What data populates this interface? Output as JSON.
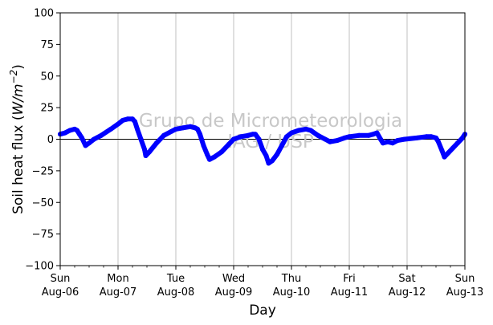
{
  "chart_data": {
    "type": "line",
    "xlabel": "Day",
    "ylabel": "Soil heat flux (W/m⁻²)",
    "ylabel_parts": {
      "pre": "Soil heat flux (",
      "var": "W/m",
      "sup": "−2",
      "post": ")"
    },
    "ylim": [
      -100,
      100
    ],
    "xlim": [
      "2023-08-06T00:00",
      "2023-08-13T00:00"
    ],
    "yticks": [
      100,
      75,
      50,
      25,
      0,
      -25,
      -50,
      -75,
      -100
    ],
    "ytick_labels": [
      "100",
      "75",
      "50",
      "25",
      "0",
      "−25",
      "−50",
      "−75",
      "−100"
    ],
    "xticks": [
      {
        "date": "2023-08-06",
        "line1": "Sun",
        "line2": "Aug-06"
      },
      {
        "date": "2023-08-07",
        "line1": "Mon",
        "line2": "Aug-07"
      },
      {
        "date": "2023-08-08",
        "line1": "Tue",
        "line2": "Aug-08"
      },
      {
        "date": "2023-08-09",
        "line1": "Wed",
        "line2": "Aug-09"
      },
      {
        "date": "2023-08-10",
        "line1": "Thu",
        "line2": "Aug-10"
      },
      {
        "date": "2023-08-11",
        "line1": "Fri",
        "line2": "Aug-11"
      },
      {
        "date": "2023-08-12",
        "line1": "Sat",
        "line2": "Aug-12"
      },
      {
        "date": "2023-08-13",
        "line1": "Sun",
        "line2": "Aug-13"
      }
    ],
    "grid": "vertical",
    "zero_line": true,
    "watermark": [
      "Grupo de Micrometeorologia",
      "IAG / USP"
    ],
    "series": [
      {
        "color": "#0000ff",
        "points": [
          [
            "2023-08-06T00:00",
            4
          ],
          [
            "2023-08-06T02:00",
            5
          ],
          [
            "2023-08-06T04:00",
            7
          ],
          [
            "2023-08-06T06:00",
            8
          ],
          [
            "2023-08-06T07:00",
            7
          ],
          [
            "2023-08-06T08:00",
            4
          ],
          [
            "2023-08-06T09:00",
            1
          ],
          [
            "2023-08-06T10:30",
            -5
          ],
          [
            "2023-08-06T12:00",
            -3
          ],
          [
            "2023-08-06T14:00",
            0
          ],
          [
            "2023-08-06T17:00",
            3
          ],
          [
            "2023-08-06T21:00",
            8
          ],
          [
            "2023-08-07T00:00",
            12
          ],
          [
            "2023-08-07T02:00",
            15
          ],
          [
            "2023-08-07T04:00",
            16
          ],
          [
            "2023-08-07T06:00",
            16
          ],
          [
            "2023-08-07T07:00",
            14
          ],
          [
            "2023-08-07T08:00",
            8
          ],
          [
            "2023-08-07T09:30",
            0
          ],
          [
            "2023-08-07T11:00",
            -8
          ],
          [
            "2023-08-07T11:30",
            -13
          ],
          [
            "2023-08-07T13:00",
            -10
          ],
          [
            "2023-08-07T16:00",
            -3
          ],
          [
            "2023-08-07T19:00",
            3
          ],
          [
            "2023-08-07T22:00",
            6
          ],
          [
            "2023-08-08T00:00",
            8
          ],
          [
            "2023-08-08T03:00",
            9
          ],
          [
            "2023-08-08T06:00",
            10
          ],
          [
            "2023-08-08T08:00",
            9
          ],
          [
            "2023-08-08T09:00",
            8
          ],
          [
            "2023-08-08T10:00",
            4
          ],
          [
            "2023-08-08T11:30",
            -5
          ],
          [
            "2023-08-08T13:00",
            -12
          ],
          [
            "2023-08-08T14:00",
            -16
          ],
          [
            "2023-08-08T16:00",
            -14
          ],
          [
            "2023-08-08T19:00",
            -10
          ],
          [
            "2023-08-08T22:00",
            -4
          ],
          [
            "2023-08-09T00:00",
            0
          ],
          [
            "2023-08-09T03:00",
            2
          ],
          [
            "2023-08-09T06:00",
            3
          ],
          [
            "2023-08-09T08:00",
            4
          ],
          [
            "2023-08-09T09:00",
            4
          ],
          [
            "2023-08-09T10:30",
            0
          ],
          [
            "2023-08-09T12:00",
            -8
          ],
          [
            "2023-08-09T13:30",
            -13
          ],
          [
            "2023-08-09T14:30",
            -19
          ],
          [
            "2023-08-09T16:00",
            -17
          ],
          [
            "2023-08-09T18:00",
            -12
          ],
          [
            "2023-08-09T20:00",
            -5
          ],
          [
            "2023-08-09T22:00",
            2
          ],
          [
            "2023-08-10T00:00",
            5
          ],
          [
            "2023-08-10T03:00",
            7
          ],
          [
            "2023-08-10T06:00",
            8
          ],
          [
            "2023-08-10T08:00",
            7
          ],
          [
            "2023-08-10T11:00",
            3
          ],
          [
            "2023-08-10T14:00",
            0
          ],
          [
            "2023-08-10T16:00",
            -2
          ],
          [
            "2023-08-10T19:00",
            -1
          ],
          [
            "2023-08-10T22:00",
            1
          ],
          [
            "2023-08-11T00:00",
            2
          ],
          [
            "2023-08-11T04:00",
            3
          ],
          [
            "2023-08-11T08:00",
            3
          ],
          [
            "2023-08-11T10:00",
            4
          ],
          [
            "2023-08-11T11:30",
            5
          ],
          [
            "2023-08-11T13:00",
            0
          ],
          [
            "2023-08-11T14:00",
            -3
          ],
          [
            "2023-08-11T16:00",
            -2
          ],
          [
            "2023-08-11T18:00",
            -3
          ],
          [
            "2023-08-11T20:00",
            -1
          ],
          [
            "2023-08-11T23:00",
            0
          ],
          [
            "2023-08-12T04:00",
            1
          ],
          [
            "2023-08-12T08:00",
            2
          ],
          [
            "2023-08-12T10:00",
            2
          ],
          [
            "2023-08-12T12:00",
            1
          ],
          [
            "2023-08-12T13:00",
            -2
          ],
          [
            "2023-08-12T14:30",
            -9
          ],
          [
            "2023-08-12T15:30",
            -14
          ],
          [
            "2023-08-12T17:00",
            -11
          ],
          [
            "2023-08-12T19:00",
            -7
          ],
          [
            "2023-08-12T21:00",
            -3
          ],
          [
            "2023-08-12T23:00",
            1
          ],
          [
            "2023-08-13T00:00",
            4
          ]
        ]
      }
    ]
  }
}
